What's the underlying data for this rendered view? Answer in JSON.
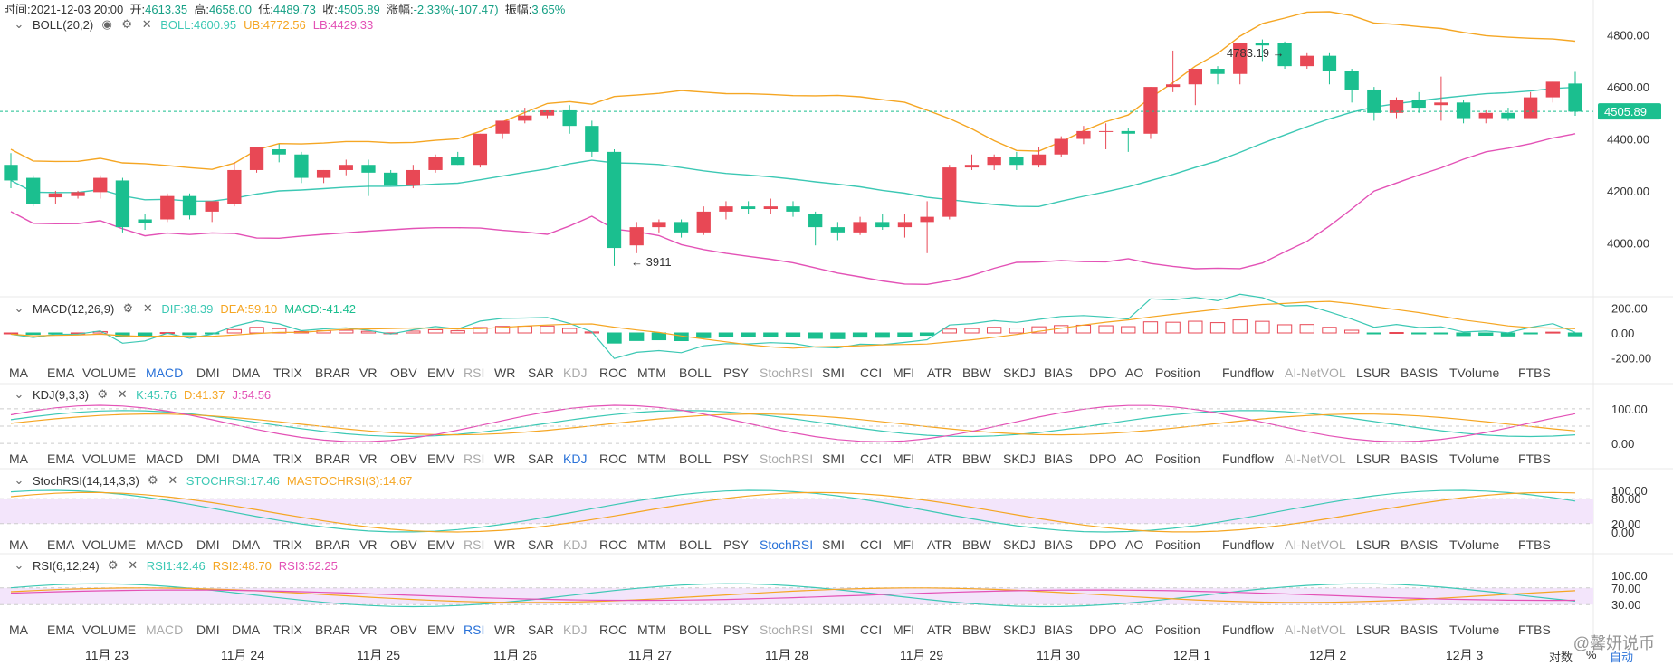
{
  "header": {
    "time_label": "时间:",
    "time": "2021-12-03 20:00",
    "open_label": "开:",
    "open": "4613.35",
    "high_label": "高:",
    "high": "4658.00",
    "low_label": "低:",
    "low": "4489.73",
    "close_label": "收:",
    "close": "4505.89",
    "change_label": "涨幅:",
    "change": "-2.33%(-107.47)",
    "amp_label": "振幅:",
    "amp": "3.65%"
  },
  "boll_panel": {
    "name": "BOLL(20,2)",
    "boll": "BOLL:4600.95",
    "ub": "UB:4772.56",
    "lb": "LB:4429.33",
    "y_ticks": [
      "4800.00",
      "4600.00",
      "4400.00",
      "4200.00",
      "4000.00"
    ],
    "last_price": "4505.89",
    "high_annotation": "4783.19",
    "low_annotation": "3911"
  },
  "macd_panel": {
    "name": "MACD(12,26,9)",
    "dif": "DIF:38.39",
    "dea": "DEA:59.10",
    "macd": "MACD:-41.42",
    "y_ticks": [
      "200.00",
      "0.00",
      "-200.00"
    ]
  },
  "kdj_panel": {
    "name": "KDJ(9,3,3)",
    "k": "K:45.76",
    "d": "D:41.37",
    "j": "J:54.56",
    "y_ticks": [
      "100.00",
      "0.00"
    ]
  },
  "stochrsi_panel": {
    "name": "StochRSI(14,14,3,3)",
    "stochrsi": "STOCHRSI:17.46",
    "mastochrsi": "MASTOCHRSI(3):14.67",
    "y_ticks": [
      "100.00",
      "80.00",
      "20.00",
      "0.00"
    ]
  },
  "rsi_panel": {
    "name": "RSI(6,12,24)",
    "rsi1": "RSI1:42.46",
    "rsi2": "RSI2:48.70",
    "rsi3": "RSI3:52.25",
    "y_ticks": [
      "100.00",
      "70.00",
      "30.00"
    ]
  },
  "indicator_tabs": [
    "MA",
    "EMA",
    "VOLUME",
    "MACD",
    "DMI",
    "DMA",
    "TRIX",
    "BRAR",
    "VR",
    "OBV",
    "EMV",
    "RSI",
    "WR",
    "SAR",
    "KDJ",
    "ROC",
    "MTM",
    "BOLL",
    "PSY",
    "StochRSI",
    "SMI",
    "CCI",
    "MFI",
    "ATR",
    "BBW",
    "SKDJ",
    "BIAS",
    "DPO",
    "AO",
    "Position",
    "Fundflow",
    "AI-NetVOL",
    "LSUR",
    "BASIS",
    "TVolume",
    "FTBS"
  ],
  "x_axis": [
    "11月 23",
    "11月 24",
    "11月 25",
    "11月 26",
    "11月 27",
    "11月 28",
    "11月 29",
    "11月 30",
    "12月 1",
    "12月 2",
    "12月 3"
  ],
  "footer": {
    "log_label": "对数",
    "pct_label": "%",
    "auto_label": "自动"
  },
  "watermark": "@馨妍说币",
  "colors": {
    "up": "#e84855",
    "down": "#1bbf8f",
    "ub": "#f5a623",
    "mid": "#3cc8b4",
    "lb": "#e352b6",
    "dif": "#3cc8b4",
    "dea": "#f5a623",
    "accent": "#2a72d8"
  },
  "chart_data": {
    "type": "candlestick",
    "interval": "4h",
    "ylim": [
      3820,
      4900
    ],
    "candles": [
      [
        4300,
        4345,
        4240,
        4210
      ],
      [
        4250,
        4260,
        4150,
        4140
      ],
      [
        4175,
        4200,
        4190,
        4150
      ],
      [
        4180,
        4200,
        4195,
        4170
      ],
      [
        4195,
        4260,
        4250,
        4170
      ],
      [
        4240,
        4250,
        4060,
        4040
      ],
      [
        4090,
        4110,
        4075,
        4050
      ],
      [
        4090,
        4190,
        4180,
        4080
      ],
      [
        4180,
        4190,
        4105,
        4090
      ],
      [
        4120,
        4140,
        4160,
        4080
      ],
      [
        4150,
        4310,
        4280,
        4140
      ],
      [
        4280,
        4360,
        4370,
        4270
      ],
      [
        4360,
        4380,
        4340,
        4310
      ],
      [
        4340,
        4350,
        4250,
        4230
      ],
      [
        4250,
        4280,
        4280,
        4230
      ],
      [
        4280,
        4320,
        4300,
        4260
      ],
      [
        4300,
        4320,
        4270,
        4180
      ],
      [
        4270,
        4280,
        4220,
        4220
      ],
      [
        4220,
        4300,
        4280,
        4210
      ],
      [
        4280,
        4340,
        4330,
        4270
      ],
      [
        4330,
        4350,
        4300,
        4300
      ],
      [
        4300,
        4420,
        4420,
        4290
      ],
      [
        4420,
        4470,
        4470,
        4400
      ],
      [
        4470,
        4520,
        4490,
        4460
      ],
      [
        4490,
        4500,
        4510,
        4480
      ],
      [
        4510,
        4530,
        4450,
        4420
      ],
      [
        4450,
        4470,
        4350,
        4330
      ],
      [
        4350,
        4360,
        3980,
        3911
      ],
      [
        3990,
        4080,
        4060,
        3960
      ],
      [
        4060,
        4090,
        4080,
        4040
      ],
      [
        4080,
        4090,
        4040,
        4020
      ],
      [
        4040,
        4140,
        4120,
        4030
      ],
      [
        4120,
        4160,
        4140,
        4090
      ],
      [
        4140,
        4160,
        4130,
        4110
      ],
      [
        4130,
        4170,
        4140,
        4110
      ],
      [
        4140,
        4160,
        4120,
        4100
      ],
      [
        4110,
        4120,
        4060,
        3990
      ],
      [
        4060,
        4080,
        4040,
        4010
      ],
      [
        4040,
        4100,
        4080,
        4030
      ],
      [
        4080,
        4110,
        4060,
        4050
      ],
      [
        4060,
        4110,
        4080,
        4020
      ],
      [
        4080,
        4160,
        4100,
        3960
      ],
      [
        4100,
        4300,
        4290,
        4090
      ],
      [
        4290,
        4340,
        4300,
        4280
      ],
      [
        4300,
        4340,
        4330,
        4280
      ],
      [
        4330,
        4350,
        4300,
        4280
      ],
      [
        4300,
        4370,
        4340,
        4290
      ],
      [
        4340,
        4410,
        4400,
        4330
      ],
      [
        4400,
        4450,
        4430,
        4380
      ],
      [
        4430,
        4460,
        4430,
        4360
      ],
      [
        4430,
        4440,
        4420,
        4350
      ],
      [
        4420,
        4600,
        4600,
        4400
      ],
      [
        4600,
        4740,
        4610,
        4580
      ],
      [
        4610,
        4670,
        4670,
        4530
      ],
      [
        4670,
        4680,
        4650,
        4610
      ],
      [
        4650,
        4770,
        4770,
        4610
      ],
      [
        4770,
        4783,
        4760,
        4700
      ],
      [
        4770,
        4775,
        4680,
        4670
      ],
      [
        4680,
        4730,
        4720,
        4670
      ],
      [
        4720,
        4730,
        4660,
        4610
      ],
      [
        4660,
        4670,
        4590,
        4540
      ],
      [
        4590,
        4600,
        4500,
        4470
      ],
      [
        4500,
        4560,
        4550,
        4480
      ],
      [
        4550,
        4580,
        4520,
        4500
      ],
      [
        4530,
        4640,
        4540,
        4470
      ],
      [
        4540,
        4550,
        4480,
        4460
      ],
      [
        4480,
        4510,
        4500,
        4460
      ],
      [
        4500,
        4520,
        4480,
        4470
      ],
      [
        4480,
        4580,
        4560,
        4480
      ],
      [
        4560,
        4620,
        4620,
        4540
      ],
      [
        4613,
        4658,
        4505,
        4489
      ]
    ]
  }
}
